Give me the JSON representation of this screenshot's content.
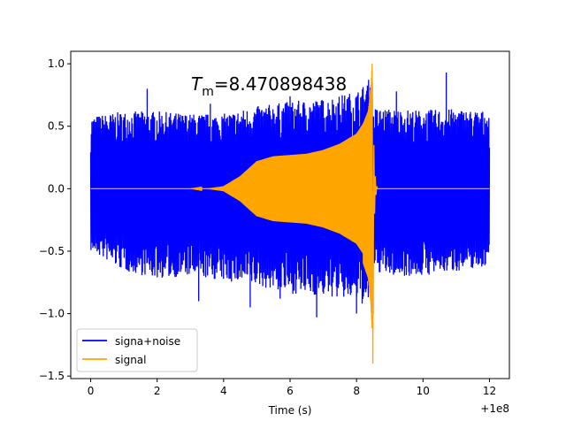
{
  "chart_data": {
    "type": "line",
    "annotation": {
      "symbol": "T",
      "subscript": "m",
      "text": "=8.470898438"
    },
    "xlabel": "Time (s)",
    "ylabel": "",
    "x_offset_label": "+1e8",
    "xlim": [
      -0.6,
      12.6
    ],
    "ylim": [
      -1.52,
      1.1
    ],
    "x_ticks": [
      0,
      2,
      4,
      6,
      8,
      10,
      12
    ],
    "x_tick_labels": [
      "0",
      "2",
      "4",
      "6",
      "8",
      "10",
      "12"
    ],
    "y_ticks": [
      -1.5,
      -1.0,
      -0.5,
      0.0,
      0.5,
      1.0
    ],
    "y_tick_labels": [
      "−1.5",
      "−1.0",
      "−0.5",
      "0.0",
      "0.5",
      "1.0"
    ],
    "grid": false,
    "legend_position": "lower-left",
    "series": [
      {
        "name": "signa+noise",
        "color": "#0000ff",
        "x_range": [
          0,
          12
        ],
        "approx_range": [
          -1.03,
          0.93
        ],
        "envelope": {
          "x": [
            0,
            1,
            2,
            3,
            4,
            5,
            6,
            7,
            8,
            8.3,
            8.47,
            8.5,
            9,
            10,
            11,
            12
          ],
          "upper": [
            0.58,
            0.62,
            0.62,
            0.6,
            0.6,
            0.66,
            0.7,
            0.72,
            0.78,
            0.85,
            0.92,
            0.65,
            0.64,
            0.63,
            0.64,
            0.62
          ],
          "lower": [
            -0.5,
            -0.66,
            -0.72,
            -0.7,
            -0.74,
            -0.78,
            -0.84,
            -0.86,
            -0.9,
            -0.95,
            -1.0,
            -0.66,
            -0.7,
            -0.7,
            -0.66,
            -0.62
          ]
        },
        "spikes": [
          {
            "x": 1.7,
            "y": 0.8
          },
          {
            "x": 3.25,
            "y": -0.9
          },
          {
            "x": 3.6,
            "y": 0.68
          },
          {
            "x": 4.8,
            "y": -0.95
          },
          {
            "x": 5.7,
            "y": -0.88
          },
          {
            "x": 6.0,
            "y": 0.74
          },
          {
            "x": 6.8,
            "y": -1.03
          },
          {
            "x": 8.0,
            "y": -1.0
          },
          {
            "x": 8.5,
            "y": -1.0
          },
          {
            "x": 9.2,
            "y": 0.78
          },
          {
            "x": 10.7,
            "y": 0.93
          }
        ]
      },
      {
        "name": "signal",
        "color": "#ffa500",
        "chirp_envelope": {
          "x": [
            0,
            3.0,
            3.6,
            4.0,
            4.5,
            5.0,
            5.5,
            6.0,
            6.5,
            7.0,
            7.5,
            8.0,
            8.2,
            8.35,
            8.43,
            8.47
          ],
          "upper": [
            0,
            0,
            0.005,
            0.02,
            0.1,
            0.22,
            0.26,
            0.27,
            0.28,
            0.31,
            0.36,
            0.44,
            0.52,
            0.62,
            0.8,
            1.0
          ]
        },
        "peak": {
          "x": 8.47,
          "y": 1.0
        },
        "trough": {
          "x": 8.47,
          "y": -1.4
        },
        "ringdown_end": 8.6,
        "x_end": 12
      }
    ]
  }
}
